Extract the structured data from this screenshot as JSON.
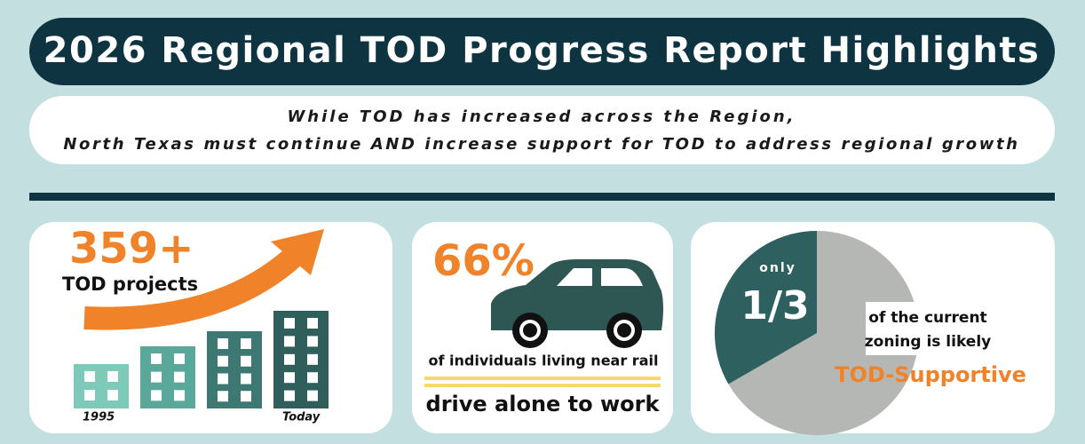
{
  "header": {
    "title": "2026 Regional TOD Progress Report Highlights"
  },
  "subtitle": {
    "line1": "While TOD has increased across the Region,",
    "line2": "North Texas must continue AND increase support for TOD to address regional growth"
  },
  "cards": [
    {
      "stat": "359+",
      "label": "TOD projects",
      "start_label": "1995",
      "end_label": "Today"
    },
    {
      "stat": "66%",
      "label": "of individuals living near rail",
      "emphasis": "drive alone to work"
    },
    {
      "qualifier": "only",
      "stat": "1/3",
      "label_line1": "of the current",
      "label_line2": "zoning is likely",
      "emphasis": "TOD-Supportive"
    }
  ]
}
